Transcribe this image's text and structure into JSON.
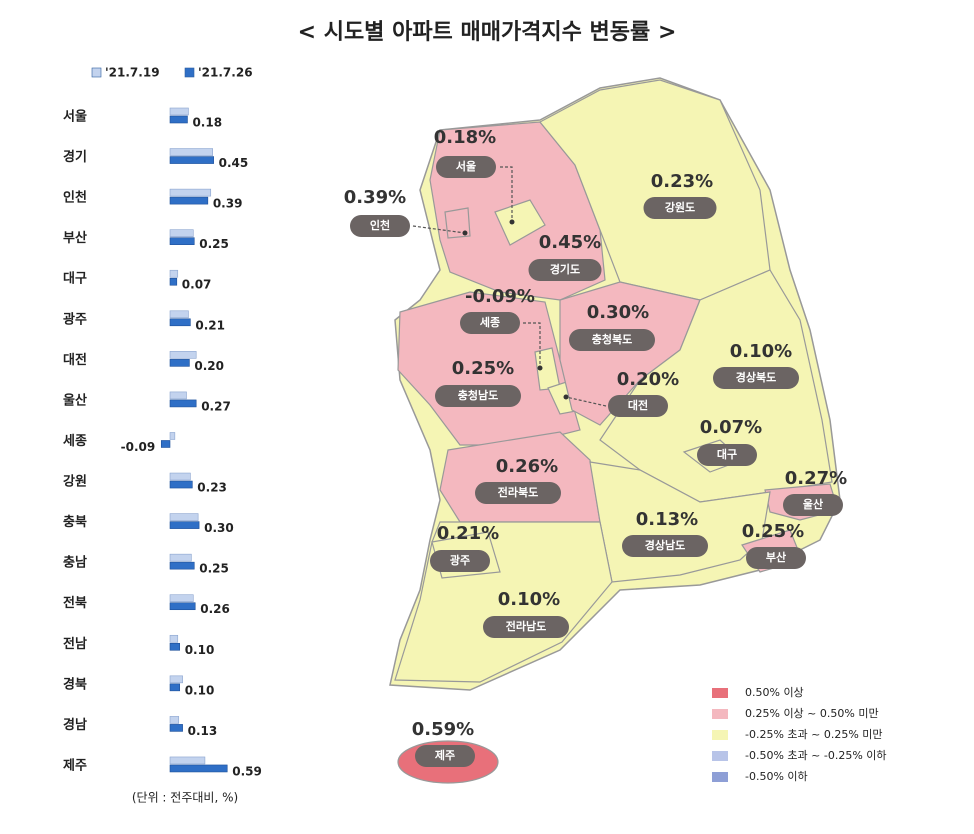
{
  "title": "< 시도별 아파트 매매가격지수 변동률 >",
  "chart_data": [
    {
      "type": "hbar",
      "categories": [
        "서울",
        "경기",
        "인천",
        "부산",
        "대구",
        "광주",
        "대전",
        "울산",
        "세종",
        "강원",
        "충북",
        "충남",
        "전북",
        "전남",
        "경북",
        "경남",
        "제주"
      ],
      "series": [
        {
          "name": "'21.7.19",
          "color": "#c3d3ee",
          "values": [
            0.19,
            0.44,
            0.42,
            0.24,
            0.08,
            0.19,
            0.27,
            0.17,
            0.05,
            0.21,
            0.29,
            0.22,
            0.24,
            0.08,
            0.13,
            0.09,
            0.36
          ]
        },
        {
          "name": "'21.7.26",
          "color": "#2f6fc6",
          "values": [
            0.18,
            0.45,
            0.39,
            0.25,
            0.07,
            0.21,
            0.2,
            0.27,
            -0.09,
            0.23,
            0.3,
            0.25,
            0.26,
            0.1,
            0.1,
            0.13,
            0.59
          ],
          "value_labels": [
            "0.18",
            "0.45",
            "0.39",
            "0.25",
            "0.07",
            "0.21",
            "0.20",
            "0.27",
            "-0.09",
            "0.23",
            "0.30",
            "0.25",
            "0.26",
            "0.10",
            "0.10",
            "0.13",
            "0.59"
          ]
        }
      ],
      "note": "(단위 : 전주대비, %)"
    },
    {
      "type": "map",
      "categories": [
        "서울",
        "인천",
        "경기도",
        "강원도",
        "세종",
        "충청북도",
        "충청남도",
        "대전",
        "경상북도",
        "대구",
        "울산",
        "전라북도",
        "경상남도",
        "부산",
        "광주",
        "전라남도",
        "제주"
      ],
      "values": [
        0.18,
        0.39,
        0.45,
        0.23,
        -0.09,
        0.3,
        0.25,
        0.2,
        0.1,
        0.07,
        0.27,
        0.26,
        0.13,
        0.25,
        0.21,
        0.1,
        0.59
      ],
      "value_labels": [
        "0.18%",
        "0.39%",
        "0.45%",
        "0.23%",
        "-0.09%",
        "0.30%",
        "0.25%",
        "0.20%",
        "0.10%",
        "0.07%",
        "0.27%",
        "0.26%",
        "0.13%",
        "0.25%",
        "0.21%",
        "0.10%",
        "0.59%"
      ],
      "colors": [
        "#f5f5b4",
        "#f4b8bf",
        "#f4b8bf",
        "#f5f5b4",
        "#f5f5b4",
        "#f4b8bf",
        "#f4b8bf",
        "#f5f5b4",
        "#f5f5b4",
        "#f5f5b4",
        "#f4b8bf",
        "#f4b8bf",
        "#f5f5b4",
        "#f4b8bf",
        "#f5f5b4",
        "#f5f5b4",
        "#e8707a"
      ],
      "legend": [
        {
          "label": "0.50% 이상",
          "color": "#e8707a"
        },
        {
          "label": "0.25% 이상 ~ 0.50% 미만",
          "color": "#f4b8bf"
        },
        {
          "label": "-0.25% 초과 ~ 0.25% 미만",
          "color": "#f5f5b4"
        },
        {
          "label": "-0.50% 초과 ~ -0.25% 이하",
          "color": "#b8c4e8"
        },
        {
          "label": "-0.50% 이하",
          "color": "#8e9fd6"
        }
      ]
    }
  ]
}
